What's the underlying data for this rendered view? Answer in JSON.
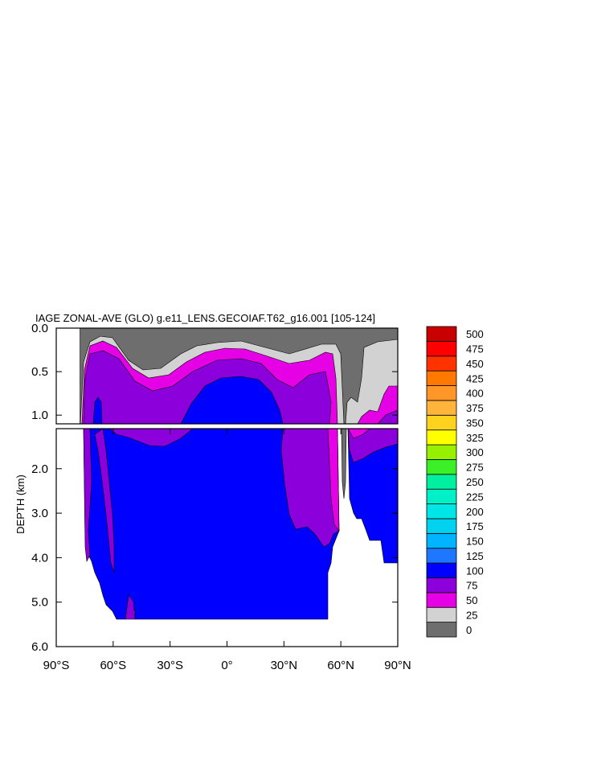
{
  "chart_data": {
    "type": "contour",
    "title": "IAGE ZONAL-AVE (GLO) g.e11_LENS.GECOIAF.T62_g16.001 [105-124]",
    "ylabel": "DEPTH (km)",
    "x_ticks": [
      "90°S",
      "60°S",
      "30°S",
      "0°",
      "30°N",
      "60°N",
      "90°N"
    ],
    "y_ticks_upper": [
      "0.0",
      "0.5",
      "1.0"
    ],
    "y_ticks_lower": [
      "2.0",
      "3.0",
      "4.0",
      "5.0",
      "6.0"
    ],
    "xlim": [
      -90,
      90
    ],
    "ylim_km": [
      0,
      6
    ],
    "levels": [
      0,
      25,
      50,
      75,
      100,
      125,
      150,
      175,
      200,
      225,
      250,
      275,
      300,
      325,
      350,
      375,
      400,
      425,
      450,
      475,
      500
    ],
    "level_labels": [
      "0",
      "25",
      "50",
      "75",
      "100",
      "125",
      "150",
      "175",
      "200",
      "225",
      "250",
      "275",
      "300",
      "325",
      "350",
      "375",
      "400",
      "425",
      "450",
      "475",
      "500"
    ],
    "colors": [
      "#6e6e6e",
      "#d2d2d2",
      "#e600e6",
      "#8c00dc",
      "#0000ff",
      "#1e78ff",
      "#00b4ff",
      "#00d2f0",
      "#00e6e6",
      "#00f0c8",
      "#00f0a0",
      "#3cf028",
      "#96f000",
      "#ffff00",
      "#ffd21e",
      "#ffb43c",
      "#ff9628",
      "#ff7800",
      "#ff3200",
      "#ff0000",
      "#c80000"
    ]
  }
}
